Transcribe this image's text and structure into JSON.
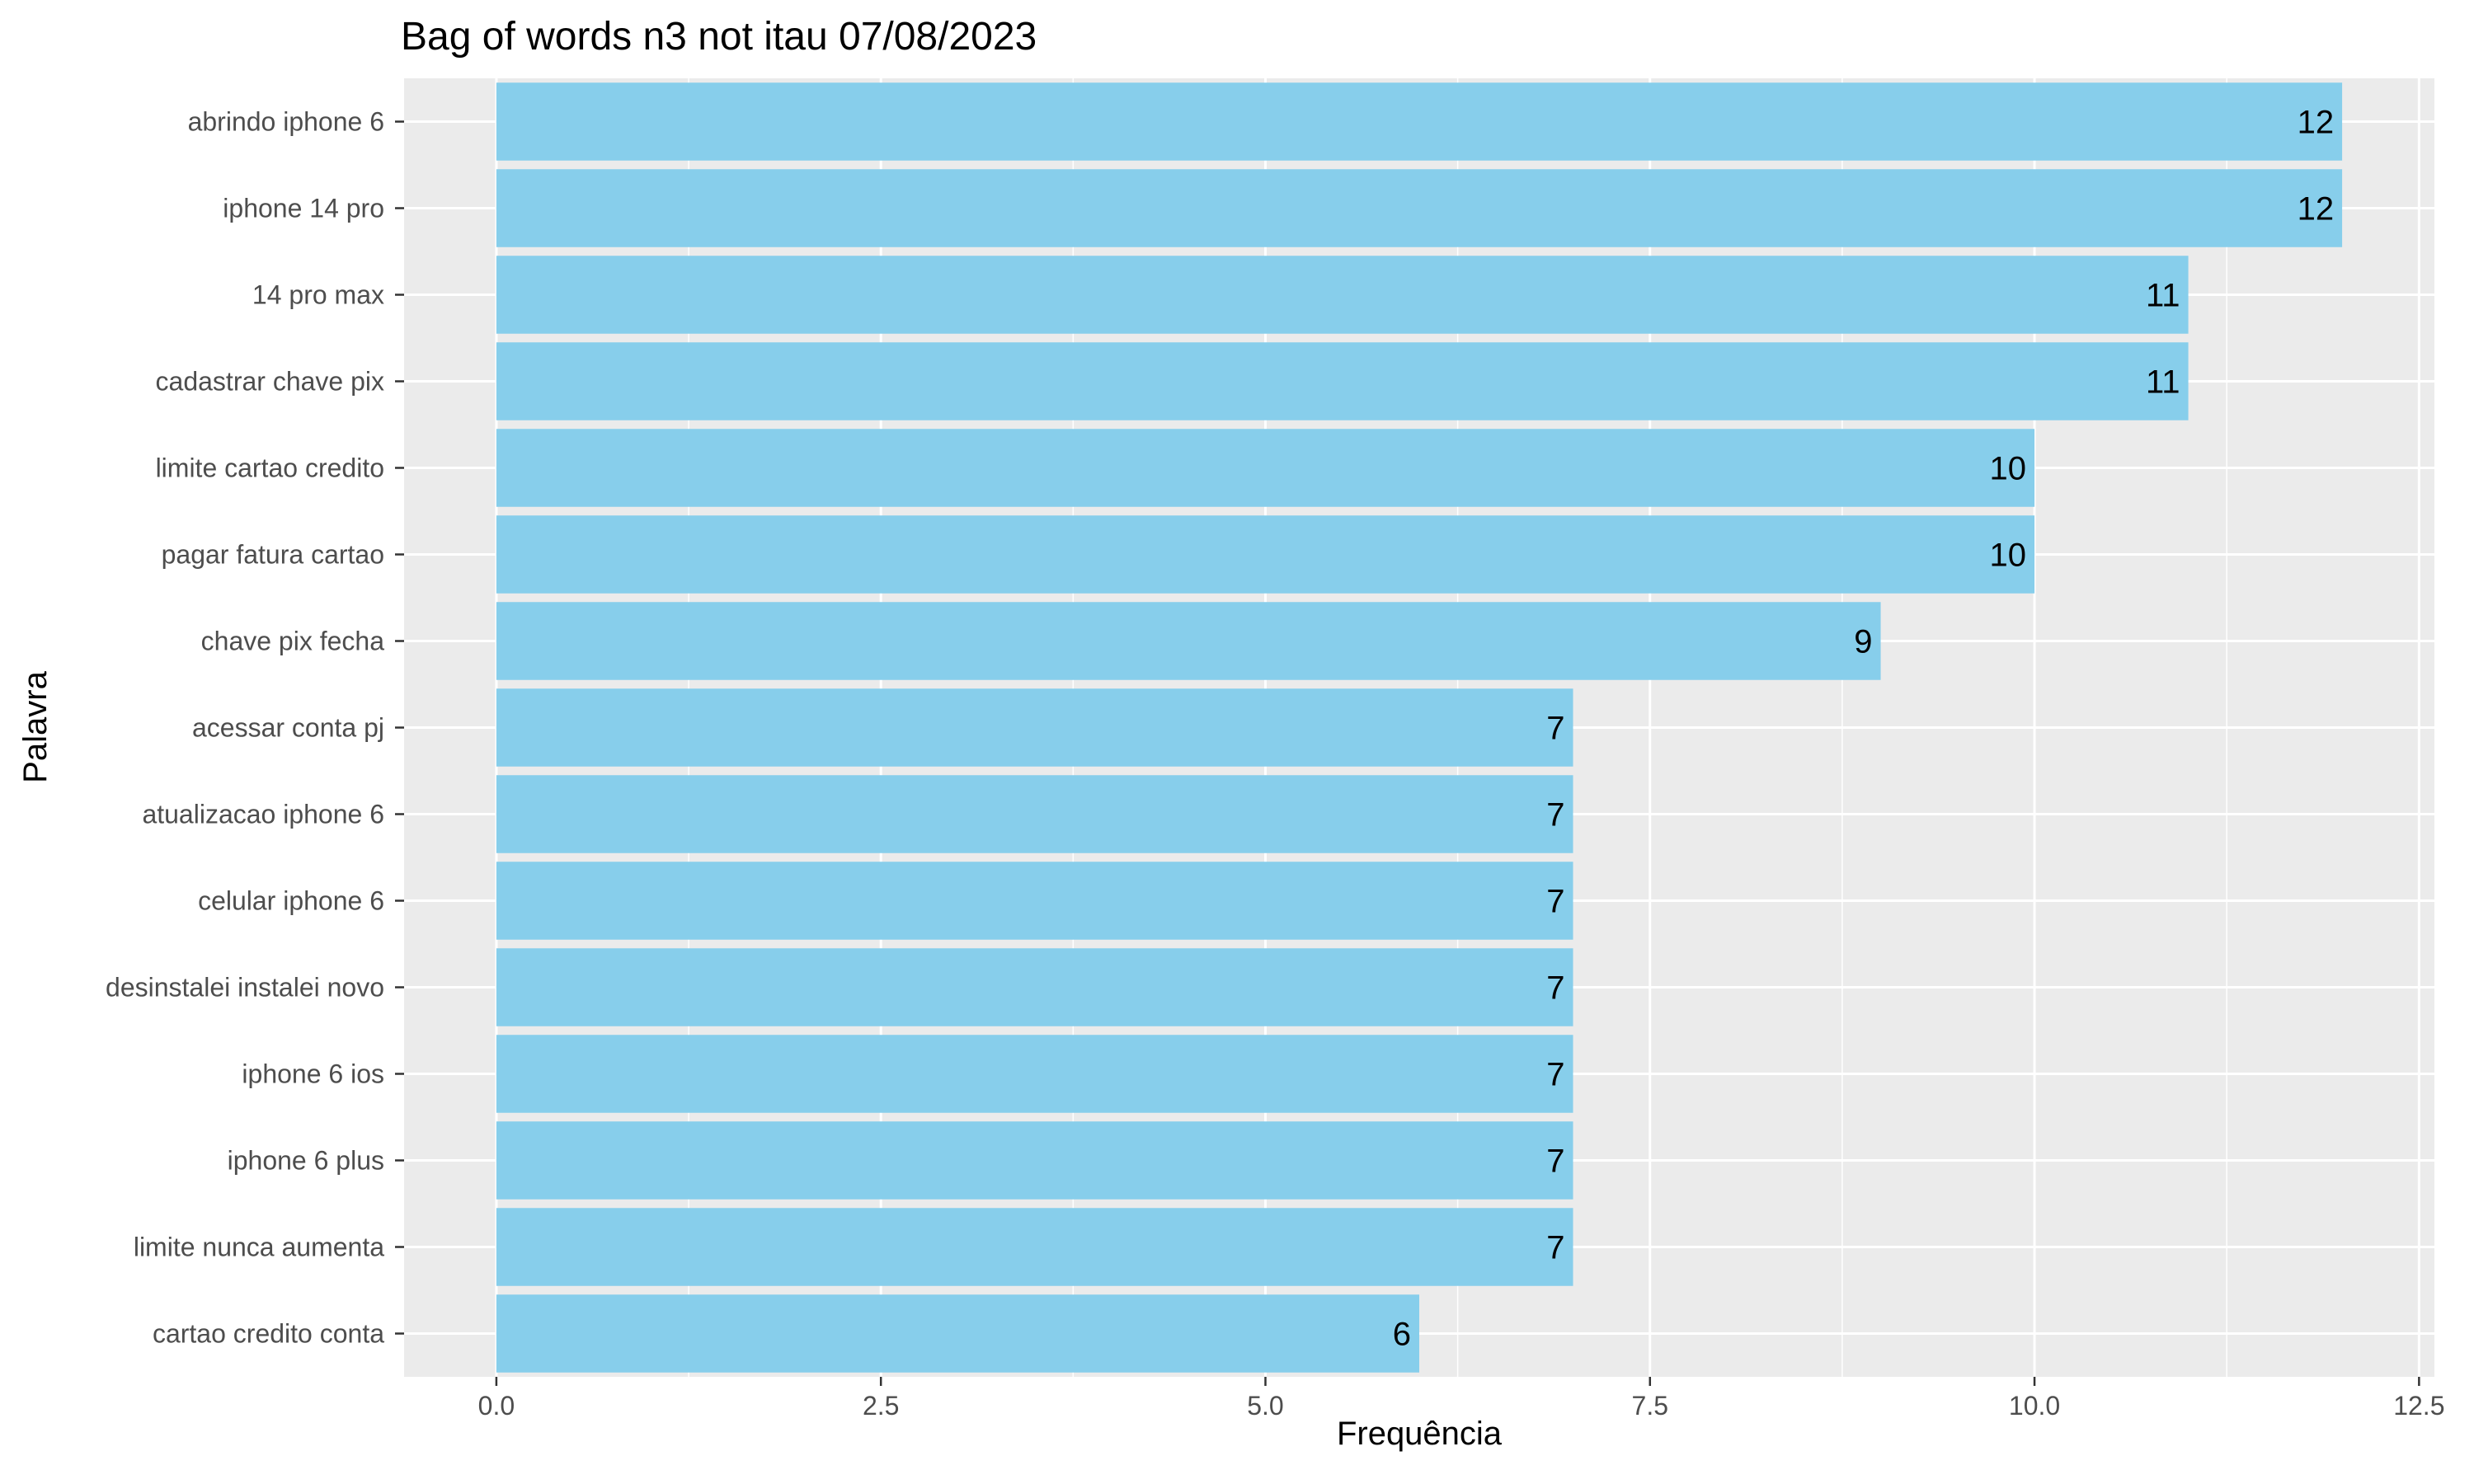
{
  "chart_data": {
    "type": "bar",
    "orientation": "horizontal",
    "title": "Bag of words n3 not itau 07/08/2023",
    "xlabel": "Frequência",
    "ylabel": "Palavra",
    "categories": [
      "abrindo iphone 6",
      "iphone 14 pro",
      "14 pro max",
      "cadastrar chave pix",
      "limite cartao credito",
      "pagar fatura cartao",
      "chave pix fecha",
      "acessar conta pj",
      "atualizacao iphone 6",
      "celular iphone 6",
      "desinstalei instalei novo",
      "iphone 6 ios",
      "iphone 6 plus",
      "limite nunca aumenta",
      "cartao credito conta"
    ],
    "values": [
      12,
      12,
      11,
      11,
      10,
      10,
      9,
      7,
      7,
      7,
      7,
      7,
      7,
      7,
      6
    ],
    "x_ticks": [
      "0.0",
      "2.5",
      "5.0",
      "7.5",
      "10.0",
      "12.5"
    ],
    "xlim": [
      -0.6,
      12.6
    ],
    "grid": true,
    "legend": "none",
    "colors": {
      "bar": "#87CEEB",
      "panel": "#EBEBEB",
      "grid": "#FFFFFF",
      "tick": "#333333"
    }
  }
}
